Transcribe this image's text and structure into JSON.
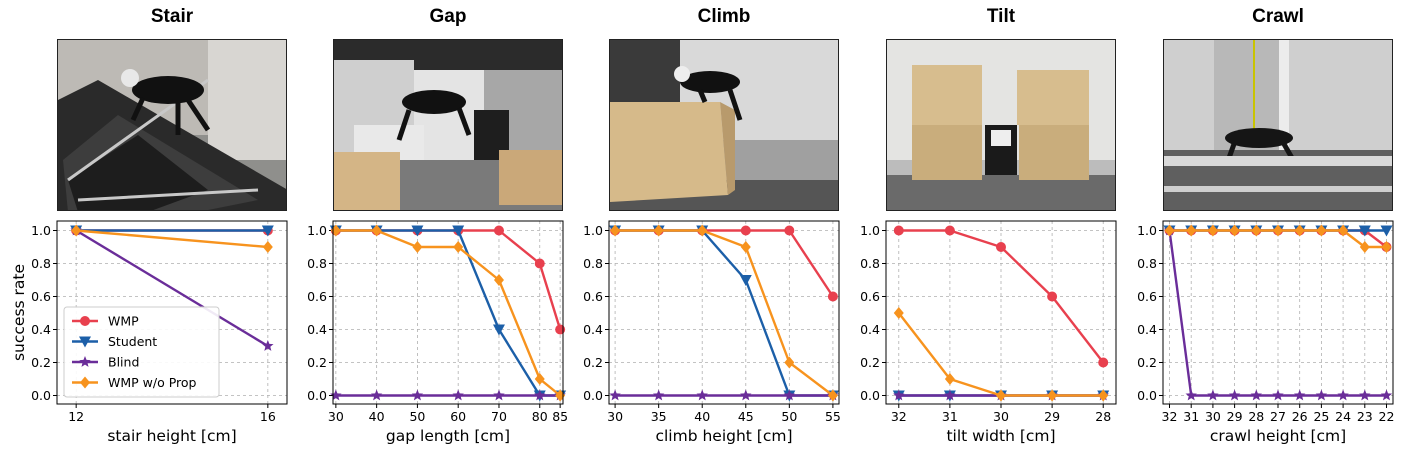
{
  "chart_data": [
    {
      "type": "line",
      "title": "Stair",
      "xlabel": "stair height [cm]",
      "ylabel": "success rate",
      "x_ticks": [
        "12",
        "16"
      ],
      "y_ticks": [
        "0.0",
        "0.2",
        "0.4",
        "0.6",
        "0.8",
        "1.0"
      ],
      "ylim": [
        0,
        1
      ],
      "grid": true,
      "legend": "lower-left",
      "series": [
        {
          "name": "WMP",
          "values": [
            1.0,
            1.0
          ]
        },
        {
          "name": "Student",
          "values": [
            1.0,
            1.0
          ]
        },
        {
          "name": "Blind",
          "values": [
            1.0,
            0.3
          ]
        },
        {
          "name": "WMP w/o Prop",
          "values": [
            1.0,
            0.9
          ]
        }
      ]
    },
    {
      "type": "line",
      "title": "Gap",
      "xlabel": "gap length [cm]",
      "x_ticks": [
        "30",
        "40",
        "50",
        "60",
        "70",
        "80",
        "85"
      ],
      "y_ticks": [
        "0.0",
        "0.2",
        "0.4",
        "0.6",
        "0.8",
        "1.0"
      ],
      "ylim": [
        0,
        1
      ],
      "grid": true,
      "series": [
        {
          "values": [
            1.0,
            1.0,
            1.0,
            1.0,
            1.0,
            0.8,
            0.4
          ]
        },
        {
          "values": [
            1.0,
            1.0,
            1.0,
            1.0,
            0.4,
            0.0,
            0.0
          ]
        },
        {
          "values": [
            0.0,
            0.0,
            0.0,
            0.0,
            0.0,
            0.0,
            0.0
          ]
        },
        {
          "values": [
            1.0,
            1.0,
            0.9,
            0.9,
            0.7,
            0.1,
            0.0
          ]
        }
      ]
    },
    {
      "type": "line",
      "title": "Climb",
      "xlabel": "climb height [cm]",
      "x_ticks": [
        "30",
        "35",
        "40",
        "45",
        "50",
        "55"
      ],
      "y_ticks": [
        "0.0",
        "0.2",
        "0.4",
        "0.6",
        "0.8",
        "1.0"
      ],
      "ylim": [
        0,
        1
      ],
      "grid": true,
      "series": [
        {
          "values": [
            1.0,
            1.0,
            1.0,
            1.0,
            1.0,
            0.6
          ]
        },
        {
          "values": [
            1.0,
            1.0,
            1.0,
            0.7,
            0.0,
            0.0
          ]
        },
        {
          "values": [
            0.0,
            0.0,
            0.0,
            0.0,
            0.0,
            0.0
          ]
        },
        {
          "values": [
            1.0,
            1.0,
            1.0,
            0.9,
            0.2,
            0.0
          ]
        }
      ]
    },
    {
      "type": "line",
      "title": "Tilt",
      "xlabel": "tilt width [cm]",
      "x_ticks": [
        "32",
        "31",
        "30",
        "29",
        "28"
      ],
      "y_ticks": [
        "0.0",
        "0.2",
        "0.4",
        "0.6",
        "0.8",
        "1.0"
      ],
      "ylim": [
        0,
        1
      ],
      "grid": true,
      "series": [
        {
          "values": [
            1.0,
            1.0,
            0.9,
            0.6,
            0.2
          ]
        },
        {
          "values": [
            0.0,
            0.0,
            0.0,
            0.0,
            0.0
          ]
        },
        {
          "values": [
            0.0,
            0.0,
            0.0,
            0.0,
            0.0
          ]
        },
        {
          "values": [
            0.5,
            0.1,
            0.0,
            0.0,
            0.0
          ]
        }
      ]
    },
    {
      "type": "line",
      "title": "Crawl",
      "xlabel": "crawl height [cm]",
      "x_ticks": [
        "32",
        "31",
        "30",
        "29",
        "28",
        "27",
        "26",
        "25",
        "24",
        "23",
        "22"
      ],
      "y_ticks": [
        "0.0",
        "0.2",
        "0.4",
        "0.6",
        "0.8",
        "1.0"
      ],
      "ylim": [
        0,
        1
      ],
      "grid": true,
      "series": [
        {
          "values": [
            1.0,
            1.0,
            1.0,
            1.0,
            1.0,
            1.0,
            1.0,
            1.0,
            1.0,
            1.0,
            0.9
          ]
        },
        {
          "values": [
            1.0,
            1.0,
            1.0,
            1.0,
            1.0,
            1.0,
            1.0,
            1.0,
            1.0,
            1.0,
            1.0
          ]
        },
        {
          "values": [
            1.0,
            0.0,
            0.0,
            0.0,
            0.0,
            0.0,
            0.0,
            0.0,
            0.0,
            0.0,
            0.0
          ]
        },
        {
          "values": [
            1.0,
            1.0,
            1.0,
            1.0,
            1.0,
            1.0,
            1.0,
            1.0,
            1.0,
            0.9,
            0.9
          ]
        }
      ]
    }
  ],
  "series_style": [
    {
      "color": "#e8404e",
      "marker": "circle"
    },
    {
      "color": "#1c5fa8",
      "marker": "triangle-down"
    },
    {
      "color": "#6a2d99",
      "marker": "star"
    },
    {
      "color": "#f7931e",
      "marker": "diamond"
    }
  ],
  "photos": [
    {
      "icon": "robot-on-stairs-photo"
    },
    {
      "icon": "robot-jumping-gap-photo"
    },
    {
      "icon": "robot-climbing-box-photo"
    },
    {
      "icon": "robot-between-tilted-boxes-photo"
    },
    {
      "icon": "robot-crawling-under-bar-photo"
    }
  ]
}
